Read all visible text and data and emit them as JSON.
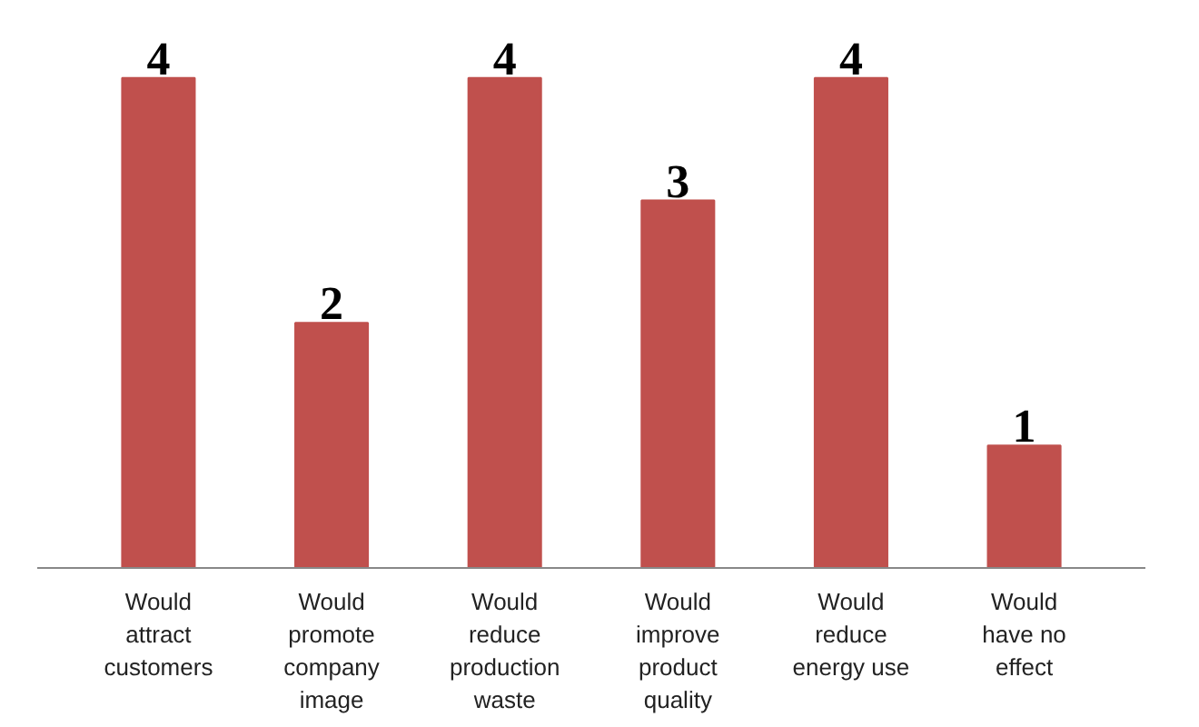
{
  "chart_data": {
    "type": "bar",
    "categories": [
      "Would attract customers",
      "Would promote company image",
      "Would reduce production waste",
      "Would improve product quality",
      "Would reduce energy use",
      "Would have no effect"
    ],
    "values": [
      4,
      2,
      4,
      3,
      4,
      1
    ],
    "color": "#c0504d",
    "data_labels": true
  }
}
